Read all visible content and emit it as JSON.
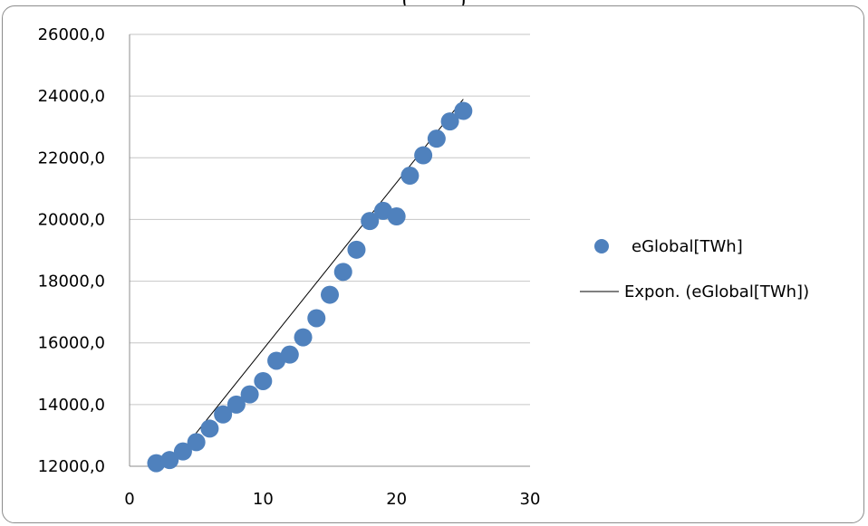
{
  "page": {
    "clipped_top_text": "(          )"
  },
  "chart_data": {
    "type": "scatter",
    "title": "",
    "xlabel": "",
    "ylabel": "",
    "xlim": [
      0,
      30
    ],
    "ylim": [
      12000,
      26000
    ],
    "x_ticks": [
      "0",
      "10",
      "20",
      "30"
    ],
    "y_ticks": [
      "12000,0",
      "14000,0",
      "16000,0",
      "18000,0",
      "20000,0",
      "22000,0",
      "24000,0",
      "26000,0"
    ],
    "grid": "horizontal",
    "legend_position": "right",
    "series": [
      {
        "name": "eGlobal[TWh]",
        "kind": "scatter",
        "color": "#4f81bd",
        "x": [
          2,
          3,
          4,
          5,
          6,
          7,
          8,
          9,
          10,
          11,
          12,
          13,
          14,
          15,
          16,
          17,
          18,
          19,
          20,
          21,
          22,
          23,
          24,
          25
        ],
        "y": [
          12100,
          12200,
          12480,
          12780,
          13220,
          13680,
          14000,
          14330,
          14760,
          15420,
          15620,
          16180,
          16800,
          17560,
          18300,
          19020,
          19950,
          20280,
          20100,
          21420,
          22080,
          22620,
          23180,
          23520
        ]
      },
      {
        "name": "Expon. (eGlobal[TWh])",
        "kind": "trendline",
        "color": "#000000",
        "x": [
          3,
          25
        ],
        "y": [
          12000,
          23900
        ]
      }
    ]
  }
}
